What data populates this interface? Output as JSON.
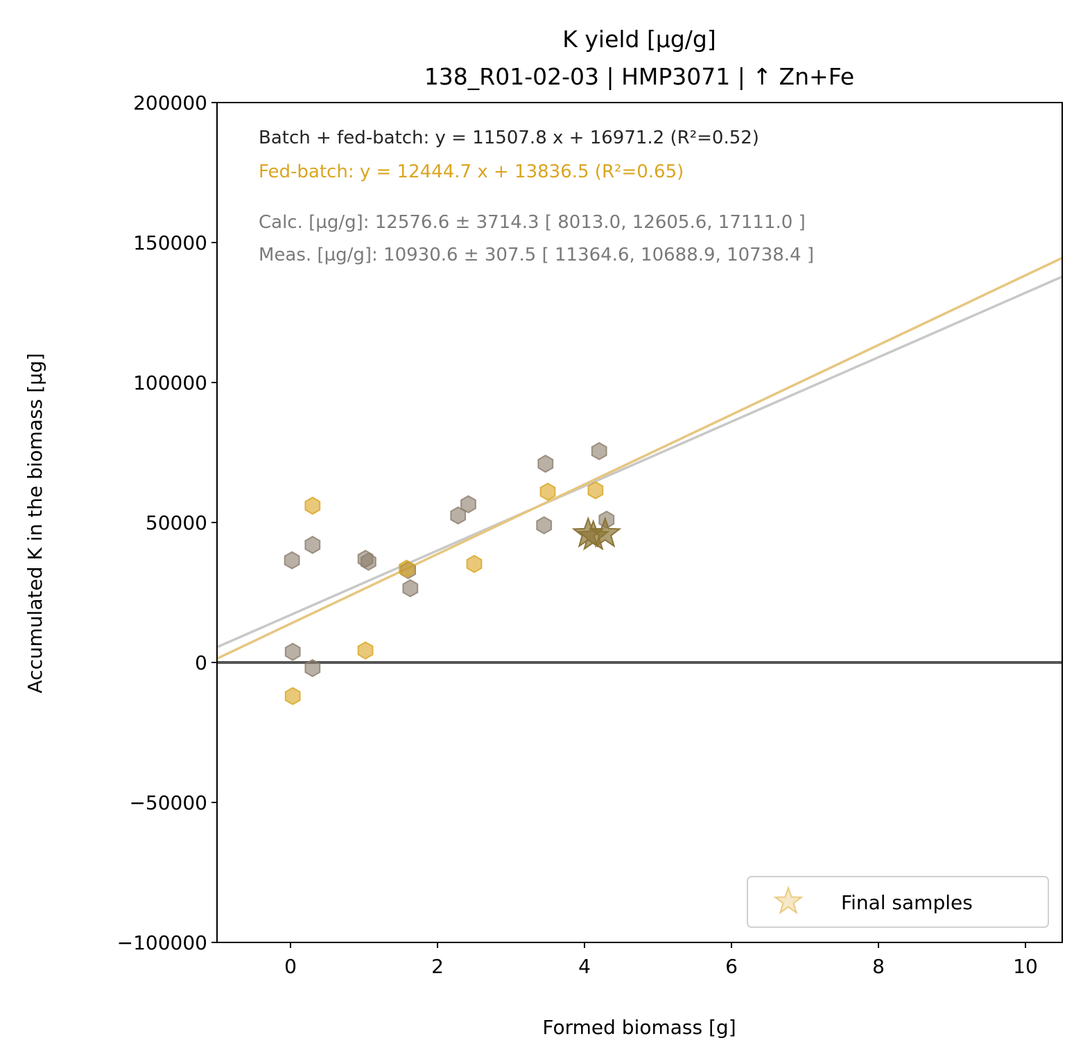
{
  "chart_data": {
    "type": "scatter",
    "title": "K yield [µg/g]",
    "subtitle": "138_R01-02-03  |  HMP3071  |  ↑ Zn+Fe",
    "xlabel": "Formed biomass [g]",
    "ylabel": "Accumulated K in the biomass [µg]",
    "xlim": [
      -1.0,
      10.5
    ],
    "ylim": [
      -100000,
      200000
    ],
    "xticks": [
      0,
      2,
      4,
      6,
      8,
      10
    ],
    "yticks": [
      -100000,
      -50000,
      0,
      50000,
      100000,
      150000,
      200000
    ],
    "ytick_labels": [
      "−100000",
      "−50000",
      "0",
      "50000",
      "100000",
      "150000",
      "200000"
    ],
    "grid": false,
    "hline_y": 0,
    "annotations": [
      {
        "text": "Batch + fed-batch: y = 11507.8 x + 16971.2 (R²=0.52)",
        "color": "#262626"
      },
      {
        "text": "Fed-batch: y = 12444.7 x + 13836.5 (R²=0.65)",
        "color": "#daa520"
      },
      {
        "text": "Calc. [µg/g]: 12576.6 ± 3714.3 [ 8013.0, 12605.6, 17111.0 ]",
        "color": "#7a7a7a"
      },
      {
        "text": "Meas. [µg/g]: 10930.6 ± 307.5 [ 11364.6, 10688.9, 10738.4 ]",
        "color": "#7a7a7a"
      }
    ],
    "fit_lines": [
      {
        "slope": 11507.8,
        "intercept": 16971.2,
        "color": "#c8c8c8"
      },
      {
        "slope": 12444.7,
        "intercept": 13836.5,
        "color": "#e6c680"
      }
    ],
    "series": [
      {
        "color": "#8b7d6b",
        "marker": "hexagon",
        "points": [
          [
            0.02,
            36500
          ],
          [
            0.3,
            42000
          ],
          [
            0.03,
            3800
          ],
          [
            0.3,
            -2000
          ],
          [
            1.02,
            37000
          ],
          [
            1.06,
            36000
          ],
          [
            1.6,
            33000
          ],
          [
            1.63,
            26500
          ],
          [
            2.28,
            52500
          ],
          [
            2.42,
            56500
          ],
          [
            3.47,
            71000
          ],
          [
            3.45,
            49000
          ],
          [
            4.2,
            75500
          ],
          [
            4.3,
            51000
          ]
        ]
      },
      {
        "color": "#daa520",
        "marker": "hexagon",
        "points": [
          [
            0.3,
            56000
          ],
          [
            0.03,
            -12000
          ],
          [
            1.02,
            4300
          ],
          [
            1.58,
            33500
          ],
          [
            2.5,
            35200
          ],
          [
            3.5,
            61000
          ],
          [
            4.15,
            61500
          ]
        ]
      },
      {
        "name": "Final samples",
        "color": "#8b7536",
        "marker": "star",
        "points": [
          [
            4.05,
            46000
          ],
          [
            4.12,
            45000
          ],
          [
            4.28,
            46000
          ]
        ]
      }
    ],
    "legend": {
      "position": "lower-right",
      "entries": [
        "Final samples"
      ]
    }
  }
}
